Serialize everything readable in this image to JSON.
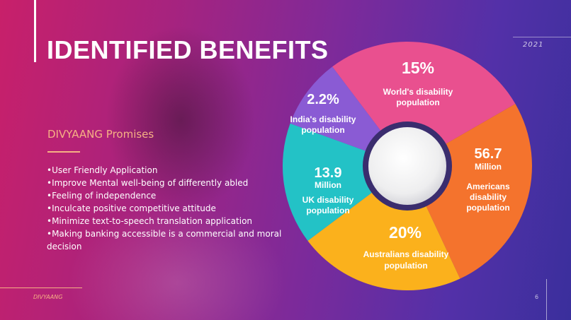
{
  "slide": {
    "title": "IDENTIFIED BENEFITS",
    "year": "2021",
    "subtitle": "DIVYAANG  Promises",
    "bullets": [
      "•User Friendly Application",
      "•Improve Mental well-being of differently abled",
      "•Feeling of independence",
      "•Inculcate positive competitive attitude",
      "•Minimize text-to-speech translation application",
      "•Making banking accessible is a commercial  and moral decision"
    ],
    "footer": "DIVYAANG",
    "page_number": "6"
  },
  "colors": {
    "accent": "#f6b184",
    "segments": [
      "#e9508f",
      "#f4732d",
      "#fbb11c",
      "#23c2c6",
      "#8a5bd4"
    ]
  },
  "chart_data": {
    "type": "pie",
    "title": "",
    "segments": [
      {
        "value": "15%",
        "label": [
          "World's disability",
          "population"
        ]
      },
      {
        "value": "56.7",
        "unit": "Million",
        "label": [
          "Americans",
          "disability",
          "population"
        ]
      },
      {
        "value": "20%",
        "label": [
          "Australians disability",
          "population"
        ]
      },
      {
        "value": "13.9",
        "unit": "Million",
        "label": [
          "UK disability",
          "population"
        ]
      },
      {
        "value": "2.2%",
        "label": [
          "India's disability",
          "population"
        ]
      }
    ]
  }
}
